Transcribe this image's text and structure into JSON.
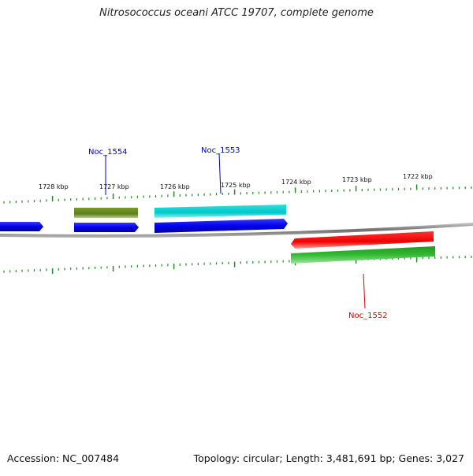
{
  "title": "Nitrosococcus oceani ATCC 19707, complete genome",
  "footer": {
    "accession": "Accession: NC_007484",
    "summary": "Topology: circular; Length: 3,481,691 bp; Genes: 3,027"
  },
  "scale_labels": [
    "1728 kbp",
    "1727 kbp",
    "1726 kbp",
    "1725 kbp",
    "1724 kbp",
    "1723 kbp",
    "1722 kbp"
  ],
  "gene_labels": [
    {
      "name": "Noc_1554",
      "color": "#0000cc"
    },
    {
      "name": "Noc_1553",
      "color": "#0000cc"
    },
    {
      "name": "Noc_1552",
      "color": "#dd0000"
    }
  ],
  "colors": {
    "cds_forward": "#0000ee",
    "cds_reverse": "#ee0000",
    "gene_forward_olive": "#6b8e23",
    "gene_forward_cyan": "#00cccc",
    "gene_reverse_green": "#22bb22",
    "backbone": "#888888",
    "ticks": "#228b22"
  }
}
